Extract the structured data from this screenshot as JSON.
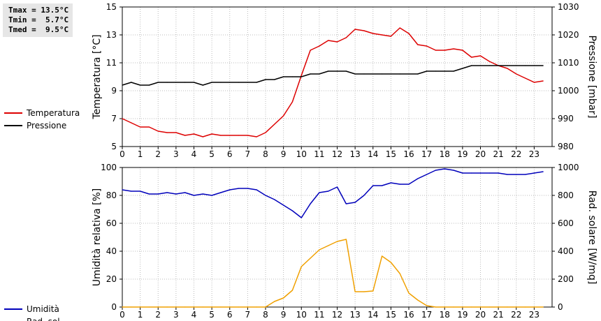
{
  "stats": {
    "tmax": "Tmax = 13.5°C",
    "tmin": "Tmin =  5.7°C",
    "tmed": "Tmed =  9.5°C"
  },
  "colors": {
    "temperature": "#dd0000",
    "pressure": "#000000",
    "humidity": "#0000bb",
    "radiation": "#f0a000"
  },
  "chart_data": [
    {
      "type": "line",
      "ylabel": "Temperatura [°C]",
      "y2label": "Pressione [mbar]",
      "xlim": [
        0,
        24
      ],
      "ylim": [
        5,
        15
      ],
      "y2lim": [
        980,
        1030
      ],
      "xticks": [
        "0",
        "1",
        "2",
        "3",
        "4",
        "5",
        "6",
        "7",
        "8",
        "9",
        "10",
        "11",
        "12",
        "13",
        "14",
        "15",
        "16",
        "17",
        "18",
        "19",
        "20",
        "21",
        "22",
        "23"
      ],
      "yticks": [
        "5",
        "7",
        "9",
        "11",
        "13",
        "15"
      ],
      "y2ticks": [
        "980",
        "990",
        "1000",
        "1010",
        "1020",
        "1030"
      ],
      "grid": true,
      "legend_position": "left",
      "series": [
        {
          "name": "Temperatura",
          "axis": "left",
          "x": [
            0,
            0.5,
            1,
            1.5,
            2,
            2.5,
            3,
            3.5,
            4,
            4.5,
            5,
            5.5,
            6,
            6.5,
            7,
            7.5,
            8,
            8.5,
            9,
            9.5,
            10,
            10.5,
            11,
            11.5,
            12,
            12.5,
            13,
            13.5,
            14,
            14.5,
            15,
            15.5,
            16,
            16.5,
            17,
            17.5,
            18,
            18.5,
            19,
            19.5,
            20,
            20.5,
            21,
            21.5,
            22,
            22.5,
            23,
            23.5
          ],
          "values": [
            7.0,
            6.7,
            6.4,
            6.4,
            6.1,
            6.0,
            6.0,
            5.8,
            5.9,
            5.7,
            5.9,
            5.8,
            5.8,
            5.8,
            5.8,
            5.7,
            6.0,
            6.6,
            7.2,
            8.2,
            10.1,
            11.9,
            12.2,
            12.6,
            12.5,
            12.8,
            13.4,
            13.3,
            13.1,
            13.0,
            12.9,
            13.5,
            13.1,
            12.3,
            12.2,
            11.9,
            11.9,
            12.0,
            11.9,
            11.4,
            11.5,
            11.1,
            10.8,
            10.6,
            10.2,
            9.9,
            9.6,
            9.7
          ]
        },
        {
          "name": "Pressione",
          "axis": "right",
          "x": [
            0,
            0.5,
            1,
            1.5,
            2,
            2.5,
            3,
            3.5,
            4,
            4.5,
            5,
            5.5,
            6,
            6.5,
            7,
            7.5,
            8,
            8.5,
            9,
            9.5,
            10,
            10.5,
            11,
            11.5,
            12,
            12.5,
            13,
            13.5,
            14,
            14.5,
            15,
            15.5,
            16,
            16.5,
            17,
            17.5,
            18,
            18.5,
            19,
            19.5,
            20,
            20.5,
            21,
            21.5,
            22,
            22.5,
            23,
            23.5
          ],
          "values": [
            1002,
            1003,
            1002,
            1002,
            1003,
            1003,
            1003,
            1003,
            1003,
            1002,
            1003,
            1003,
            1003,
            1003,
            1003,
            1003,
            1004,
            1004,
            1005,
            1005,
            1005,
            1006,
            1006,
            1007,
            1007,
            1007,
            1006,
            1006,
            1006,
            1006,
            1006,
            1006,
            1006,
            1006,
            1007,
            1007,
            1007,
            1007,
            1008,
            1009,
            1009,
            1009,
            1009,
            1009,
            1009,
            1009,
            1009,
            1009
          ]
        }
      ]
    },
    {
      "type": "line",
      "ylabel": "Umidità relativa [%]",
      "y2label": "Rad. solare [W/mq]",
      "xlim": [
        0,
        24
      ],
      "ylim": [
        0,
        100
      ],
      "y2lim": [
        0,
        1000
      ],
      "xticks": [
        "0",
        "1",
        "2",
        "3",
        "4",
        "5",
        "6",
        "7",
        "8",
        "9",
        "10",
        "11",
        "12",
        "13",
        "14",
        "15",
        "16",
        "17",
        "18",
        "19",
        "20",
        "21",
        "22",
        "23"
      ],
      "yticks": [
        "0",
        "20",
        "40",
        "60",
        "80",
        "100"
      ],
      "y2ticks": [
        "0",
        "200",
        "400",
        "600",
        "800",
        "1000"
      ],
      "grid": true,
      "legend_position": "left",
      "series": [
        {
          "name": "Umidità",
          "axis": "left",
          "x": [
            0,
            0.5,
            1,
            1.5,
            2,
            2.5,
            3,
            3.5,
            4,
            4.5,
            5,
            5.5,
            6,
            6.5,
            7,
            7.5,
            8,
            8.5,
            9,
            9.5,
            10,
            10.5,
            11,
            11.5,
            12,
            12.5,
            13,
            13.5,
            14,
            14.5,
            15,
            15.5,
            16,
            16.5,
            17,
            17.5,
            18,
            18.5,
            19,
            19.5,
            20,
            20.5,
            21,
            21.5,
            22,
            22.5,
            23,
            23.5
          ],
          "values": [
            84,
            83,
            83,
            81,
            81,
            82,
            81,
            82,
            80,
            81,
            80,
            82,
            84,
            85,
            85,
            84,
            80,
            77,
            73,
            69,
            64,
            74,
            82,
            83,
            86,
            74,
            75,
            80,
            87,
            87,
            89,
            88,
            88,
            92,
            95,
            98,
            99,
            98,
            96,
            96,
            96,
            96,
            96,
            95,
            95,
            95,
            96,
            97
          ]
        },
        {
          "name": "Rad. sol.",
          "axis": "right",
          "x": [
            0,
            0.5,
            1,
            1.5,
            2,
            2.5,
            3,
            3.5,
            4,
            4.5,
            5,
            5.5,
            6,
            6.5,
            7,
            7.5,
            8,
            8.5,
            9,
            9.5,
            10,
            10.5,
            11,
            11.5,
            12,
            12.5,
            13,
            13.5,
            14,
            14.5,
            15,
            15.5,
            16,
            16.5,
            17,
            17.5,
            18,
            18.5,
            19,
            19.5,
            20,
            20.5,
            21,
            21.5,
            22,
            22.5,
            23,
            23.5
          ],
          "values": [
            0,
            0,
            0,
            0,
            0,
            0,
            0,
            0,
            0,
            0,
            0,
            0,
            0,
            0,
            0,
            0,
            0,
            40,
            65,
            120,
            290,
            350,
            410,
            440,
            470,
            485,
            110,
            110,
            115,
            365,
            320,
            240,
            100,
            50,
            10,
            0,
            0,
            0,
            0,
            0,
            0,
            0,
            0,
            0,
            0,
            0,
            0,
            0
          ]
        }
      ]
    }
  ]
}
